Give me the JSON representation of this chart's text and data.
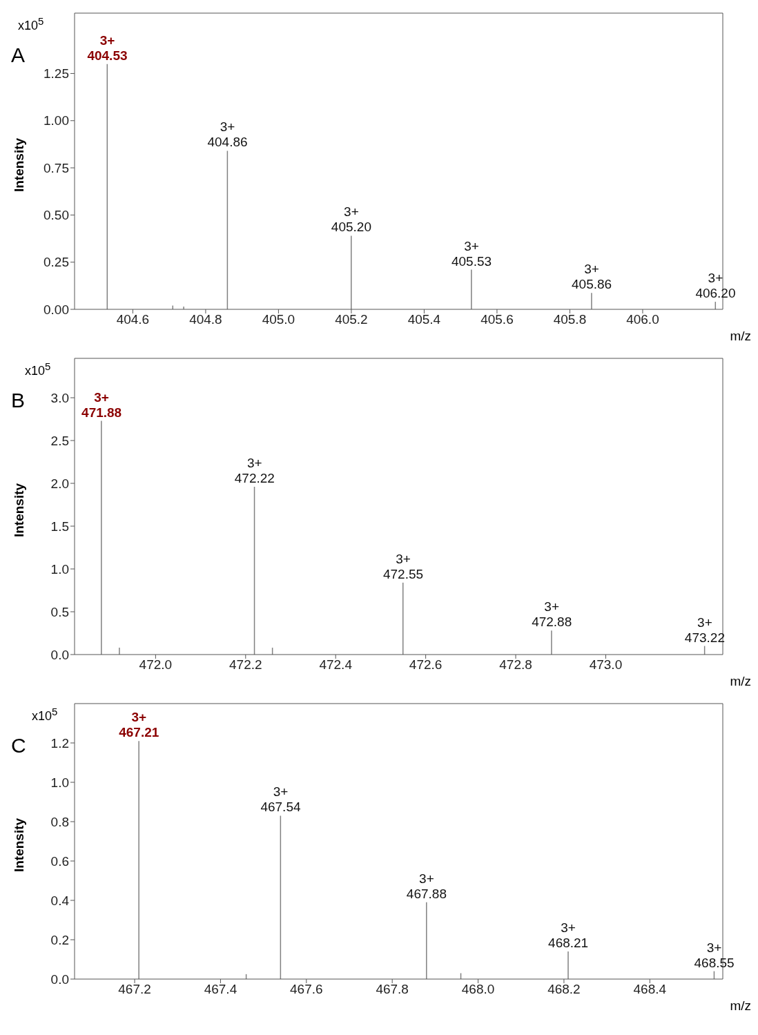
{
  "chart_data": [
    {
      "type": "bar",
      "title": "A",
      "ylabel": "Intensity",
      "xlabel": "m/z",
      "color": "#808080",
      "annotations": [
        "x10$^{5}$",
        {
          "text": "3+\n404.53",
          "x": 404.53,
          "y": 1.3
        },
        {
          "text": "3+\n404.86",
          "x": 404.86,
          "y": 0.84
        },
        {
          "text": "3+\n405.20",
          "x": 405.2,
          "y": 0.39
        },
        {
          "text": "3+\n405.53",
          "x": 405.53,
          "y": 0.21
        },
        {
          "text": "3+\n405.86",
          "x": 405.86,
          "y": 0.087
        },
        {
          "text": "3+\n406.20",
          "x": 406.2,
          "y": 0.04
        }
      ],
      "x": [
        404.53,
        404.71,
        404.74,
        404.86,
        405.2,
        405.53,
        405.86,
        406.2
      ],
      "values": [
        1.3,
        0.02,
        0.015,
        0.84,
        0.39,
        0.21,
        0.087,
        0.04
      ],
      "xlim": [
        404.44,
        406.22
      ],
      "ylim": [
        0,
        1.57
      ],
      "xticks": [
        {
          "value": 404.6,
          "label": "404.6"
        },
        {
          "value": 404.8,
          "label": "404.8"
        },
        {
          "value": 405.0,
          "label": "405.0"
        },
        {
          "value": 405.2,
          "label": "405.2"
        },
        {
          "value": 405.4,
          "label": "405.4"
        },
        {
          "value": 405.6,
          "label": "405.6"
        },
        {
          "value": 405.8,
          "label": "405.8"
        },
        {
          "value": 406.0,
          "label": "406.0"
        }
      ],
      "yticks": [
        {
          "value": 0,
          "label": "0.00"
        },
        {
          "value": 0.25,
          "label": "0.25"
        },
        {
          "value": 0.5,
          "label": "0.50"
        },
        {
          "value": 0.75,
          "label": "0.75"
        },
        {
          "value": 1,
          "label": "1.00"
        },
        {
          "value": 1.25,
          "label": "1.25"
        }
      ]
    },
    {
      "type": "bar",
      "title": "B",
      "ylabel": "Intensity",
      "xlabel": "m/z",
      "color": "#808080",
      "annotations": [
        "x10$^{5}$",
        {
          "text": "3+\n471.88",
          "x": 471.88,
          "y": 2.73
        },
        {
          "text": "3+\n472.22",
          "x": 472.22,
          "y": 1.96
        },
        {
          "text": "3+\n472.55",
          "x": 472.55,
          "y": 0.84
        },
        {
          "text": "3+\n472.88",
          "x": 472.88,
          "y": 0.28
        },
        {
          "text": "3+\n473.22",
          "x": 473.22,
          "y": 0.1
        }
      ],
      "x": [
        471.88,
        471.92,
        472.22,
        472.26,
        472.55,
        472.88,
        473.22
      ],
      "values": [
        2.73,
        0.08,
        1.96,
        0.08,
        0.84,
        0.28,
        0.1
      ],
      "xlim": [
        471.82,
        473.26
      ],
      "ylim": [
        0,
        3.46
      ],
      "xticks": [
        {
          "value": 472.0,
          "label": "472.0"
        },
        {
          "value": 472.2,
          "label": "472.2"
        },
        {
          "value": 472.4,
          "label": "472.4"
        },
        {
          "value": 472.6,
          "label": "472.6"
        },
        {
          "value": 472.8,
          "label": "472.8"
        },
        {
          "value": 473.0,
          "label": "473.0"
        }
      ],
      "yticks": [
        {
          "value": 0,
          "label": "0.0"
        },
        {
          "value": 0.5,
          "label": "0.5"
        },
        {
          "value": 1,
          "label": "1.0"
        },
        {
          "value": 1.5,
          "label": "1.5"
        },
        {
          "value": 2,
          "label": "2.0"
        },
        {
          "value": 2.5,
          "label": "2.5"
        },
        {
          "value": 3,
          "label": "3.0"
        }
      ]
    },
    {
      "type": "bar",
      "title": "C",
      "ylabel": "Intensity",
      "xlabel": "m/z",
      "color": "#808080",
      "annotations": [
        "x10$^{5}$",
        {
          "text": "3+\n467.21",
          "x": 467.21,
          "y": 1.21
        },
        {
          "text": "3+\n467.54",
          "x": 467.54,
          "y": 0.83
        },
        {
          "text": "3+\n467.88",
          "x": 467.88,
          "y": 0.39
        },
        {
          "text": "3+\n468.21",
          "x": 468.21,
          "y": 0.14
        },
        {
          "text": "3+\n468.55",
          "x": 468.55,
          "y": 0.04
        }
      ],
      "x": [
        467.21,
        467.46,
        467.54,
        467.88,
        467.96,
        468.21,
        468.55
      ],
      "values": [
        1.21,
        0.025,
        0.83,
        0.39,
        0.03,
        0.14,
        0.04
      ],
      "xlim": [
        467.06,
        468.57
      ],
      "ylim": [
        0,
        1.4
      ],
      "xticks": [
        {
          "value": 467.2,
          "label": "467.2"
        },
        {
          "value": 467.4,
          "label": "467.4"
        },
        {
          "value": 467.6,
          "label": "467.6"
        },
        {
          "value": 467.8,
          "label": "467.8"
        },
        {
          "value": 468.0,
          "label": "468.0"
        },
        {
          "value": 468.2,
          "label": "468.2"
        },
        {
          "value": 468.4,
          "label": "468.4"
        }
      ],
      "yticks": [
        {
          "value": 0,
          "label": "0.0"
        },
        {
          "value": 0.2,
          "label": "0.2"
        },
        {
          "value": 0.4,
          "label": "0.4"
        },
        {
          "value": 0.6,
          "label": "0.6"
        },
        {
          "value": 0.8,
          "label": "0.8"
        },
        {
          "value": 1,
          "label": "1.0"
        },
        {
          "value": 1.2,
          "label": "1.2"
        }
      ]
    }
  ]
}
